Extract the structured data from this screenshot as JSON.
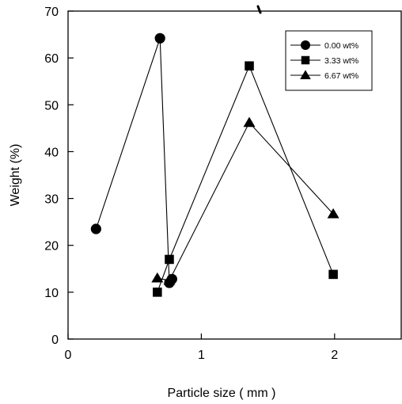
{
  "chart_data": {
    "type": "line",
    "xlabel": "Particle size ( mm )",
    "ylabel": "Weight (%)",
    "xlim": [
      0,
      2.5
    ],
    "ylim": [
      0,
      70
    ],
    "xticks": [
      "0",
      "1",
      "2"
    ],
    "xtick_values": [
      0,
      1,
      2
    ],
    "yticks": [
      "0",
      "10",
      "20",
      "30",
      "40",
      "50",
      "60",
      "70"
    ],
    "ytick_values": [
      0,
      10,
      20,
      30,
      40,
      50,
      60,
      70
    ],
    "grid": false,
    "legend_position": "top-right",
    "series": [
      {
        "name": "0.00 wt%",
        "marker": "circle",
        "points": [
          [
            0.21,
            23.5
          ],
          [
            0.69,
            64.2
          ],
          [
            0.76,
            12.0
          ],
          [
            0.78,
            12.8
          ]
        ]
      },
      {
        "name": "3.33 wt%",
        "marker": "square",
        "points": [
          [
            0.67,
            10.0
          ],
          [
            0.76,
            17.0
          ],
          [
            1.36,
            58.3
          ],
          [
            1.99,
            13.8
          ]
        ]
      },
      {
        "name": "6.67 wt%",
        "marker": "triangle",
        "points": [
          [
            0.67,
            13.0
          ],
          [
            0.76,
            12.5
          ],
          [
            1.36,
            46.2
          ],
          [
            1.99,
            26.7
          ]
        ]
      }
    ]
  }
}
